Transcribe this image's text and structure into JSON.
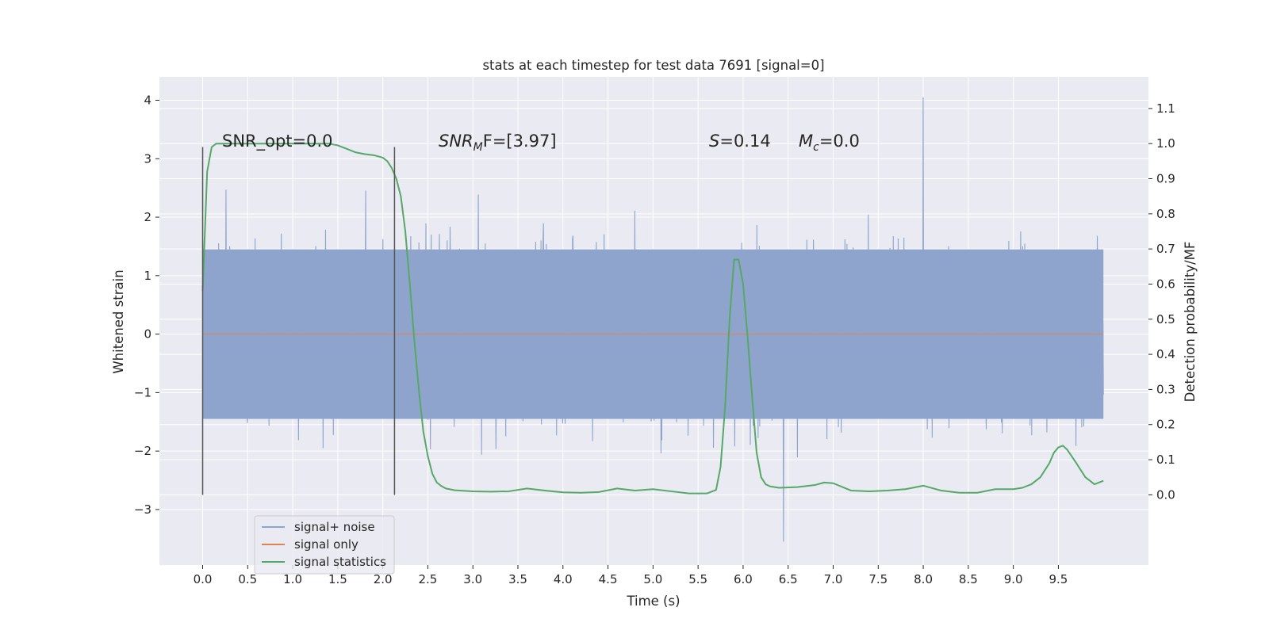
{
  "chart_data": {
    "type": "line",
    "title": "stats at each timestep for test data 7691 [signal=0]",
    "xlabel": "Time (s)",
    "ylabel": "Whitened strain",
    "ylabel_right": "Detection probability/MF",
    "xlim": [
      -0.48,
      10.5
    ],
    "ylim": [
      -3.95,
      4.4
    ],
    "ylim_right": [
      -0.2,
      1.19
    ],
    "xticks": [
      0.0,
      0.5,
      1.0,
      1.5,
      2.0,
      2.5,
      3.0,
      3.5,
      4.0,
      4.5,
      5.0,
      5.5,
      6.0,
      6.5,
      7.0,
      7.5,
      8.0,
      8.5,
      9.0,
      9.5
    ],
    "xtick_labels": [
      "0.0",
      "0.5",
      "1.0",
      "1.5",
      "2.0",
      "2.5",
      "3.0",
      "3.5",
      "4.0",
      "4.5",
      "5.0",
      "5.5",
      "6.0",
      "6.5",
      "7.0",
      "7.5",
      "8.0",
      "8.5",
      "9.0",
      "9.5"
    ],
    "yticks": [
      -3,
      -2,
      -1,
      0,
      1,
      2,
      3,
      4
    ],
    "ytick_labels": [
      "−3",
      "−2",
      "−1",
      "0",
      "1",
      "2",
      "3",
      "4"
    ],
    "yticks_right": [
      0.0,
      0.1,
      0.2,
      0.3,
      0.4,
      0.5,
      0.6,
      0.7,
      0.8,
      0.9,
      1.0,
      1.1
    ],
    "ytick_labels_right": [
      "0.0",
      "0.1",
      "0.2",
      "0.3",
      "0.4",
      "0.5",
      "0.6",
      "0.7",
      "0.8",
      "0.9",
      "1.0",
      "1.1"
    ],
    "grid": true,
    "legend_position": "lower-left",
    "annotations": {
      "snr_opt": "SNR_opt=0.0",
      "snr_mf_main": "SNR",
      "snr_mf_sub": "M",
      "snr_mf_rest": "F=[3.97]",
      "s_main": "S",
      "s_rest": "=0.14",
      "mc_main": "M",
      "mc_sub": "c",
      "mc_rest": "=0.0"
    },
    "window_markers": [
      0.0,
      2.13
    ],
    "window_marker_range": [
      -2.75,
      3.2
    ],
    "series": [
      {
        "name": "signal+ noise",
        "axis": "left",
        "color": "#8fa4cc",
        "t_start": 0.0,
        "t_end": 10.0,
        "band_amplitude": 1.45,
        "max_value": 4.05,
        "min_value": -3.55
      },
      {
        "name": "signal only",
        "axis": "left",
        "color": "#dd8452",
        "x": [
          0.0,
          10.0
        ],
        "y": [
          0.0,
          0.0
        ]
      },
      {
        "name": "signal statistics",
        "axis": "right",
        "color": "#55a868",
        "x": [
          0.0,
          0.05,
          0.1,
          0.15,
          0.25,
          0.4,
          0.6,
          0.8,
          1.0,
          1.2,
          1.4,
          1.5,
          1.6,
          1.7,
          1.8,
          1.9,
          2.0,
          2.05,
          2.1,
          2.15,
          2.2,
          2.25,
          2.3,
          2.35,
          2.4,
          2.45,
          2.5,
          2.55,
          2.6,
          2.65,
          2.7,
          2.8,
          3.0,
          3.2,
          3.4,
          3.6,
          3.8,
          4.0,
          4.2,
          4.4,
          4.6,
          4.8,
          5.0,
          5.2,
          5.4,
          5.6,
          5.7,
          5.75,
          5.8,
          5.85,
          5.9,
          5.95,
          6.0,
          6.05,
          6.1,
          6.15,
          6.2,
          6.25,
          6.3,
          6.4,
          6.6,
          6.8,
          6.9,
          7.0,
          7.2,
          7.4,
          7.6,
          7.8,
          8.0,
          8.2,
          8.4,
          8.6,
          8.8,
          9.0,
          9.1,
          9.2,
          9.3,
          9.4,
          9.45,
          9.5,
          9.55,
          9.6,
          9.7,
          9.8,
          9.9,
          10.0
        ],
        "y": [
          0.58,
          0.92,
          0.99,
          1.0,
          1.0,
          1.0,
          1.0,
          1.0,
          1.0,
          1.0,
          1.0,
          0.995,
          0.985,
          0.975,
          0.97,
          0.967,
          0.96,
          0.95,
          0.93,
          0.9,
          0.85,
          0.75,
          0.6,
          0.44,
          0.3,
          0.18,
          0.11,
          0.06,
          0.035,
          0.025,
          0.018,
          0.013,
          0.01,
          0.009,
          0.01,
          0.018,
          0.012,
          0.007,
          0.006,
          0.008,
          0.018,
          0.012,
          0.016,
          0.01,
          0.004,
          0.004,
          0.014,
          0.08,
          0.25,
          0.5,
          0.67,
          0.67,
          0.6,
          0.45,
          0.28,
          0.12,
          0.05,
          0.03,
          0.024,
          0.02,
          0.022,
          0.028,
          0.035,
          0.033,
          0.012,
          0.01,
          0.012,
          0.016,
          0.026,
          0.012,
          0.006,
          0.006,
          0.016,
          0.016,
          0.02,
          0.03,
          0.05,
          0.09,
          0.12,
          0.135,
          0.14,
          0.128,
          0.09,
          0.05,
          0.03,
          0.04
        ]
      }
    ]
  }
}
